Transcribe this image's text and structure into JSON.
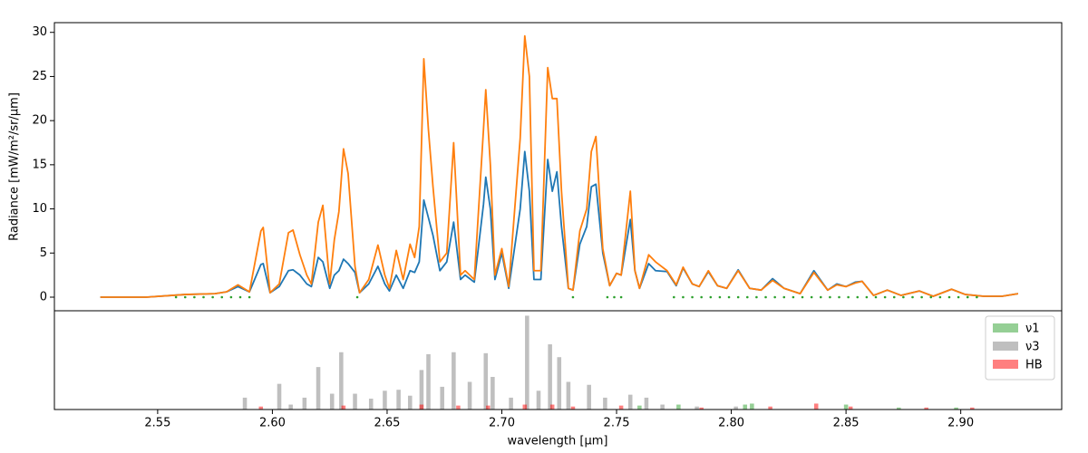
{
  "chart_data": [
    {
      "type": "line",
      "ylabel": "Radiance [mW/m²/sr/μm]",
      "xlim": [
        2.505,
        2.944
      ],
      "ylim": [
        -1.54,
        31.1
      ],
      "yticks": [
        0,
        5,
        10,
        15,
        20,
        25,
        30
      ],
      "x": [
        2.525,
        2.545,
        2.562,
        2.575,
        2.58,
        2.585,
        2.59,
        2.595,
        2.596,
        2.599,
        2.603,
        2.607,
        2.609,
        2.612,
        2.615,
        2.617,
        2.62,
        2.622,
        2.625,
        2.627,
        2.629,
        2.631,
        2.633,
        2.636,
        2.638,
        2.642,
        2.646,
        2.649,
        2.651,
        2.654,
        2.657,
        2.66,
        2.662,
        2.664,
        2.666,
        2.668,
        2.67,
        2.673,
        2.676,
        2.679,
        2.682,
        2.684,
        2.688,
        2.692,
        2.693,
        2.695,
        2.697,
        2.7,
        2.703,
        2.708,
        2.71,
        2.712,
        2.714,
        2.717,
        2.72,
        2.722,
        2.724,
        2.726,
        2.729,
        2.731,
        2.734,
        2.737,
        2.739,
        2.741,
        2.744,
        2.747,
        2.75,
        2.752,
        2.756,
        2.758,
        2.76,
        2.764,
        2.767,
        2.772,
        2.776,
        2.779,
        2.783,
        2.786,
        2.79,
        2.794,
        2.798,
        2.803,
        2.808,
        2.813,
        2.818,
        2.823,
        2.83,
        2.836,
        2.842,
        2.846,
        2.85,
        2.854,
        2.857,
        2.862,
        2.868,
        2.874,
        2.882,
        2.888,
        2.896,
        2.902,
        2.91,
        2.918,
        2.925
      ],
      "series": [
        {
          "color": "#1f77b4",
          "values": [
            0,
            0,
            0.3,
            0.4,
            0.6,
            1.2,
            0.6,
            3.7,
            3.8,
            0.5,
            1.2,
            3.0,
            3.1,
            2.5,
            1.5,
            1.2,
            4.5,
            4.0,
            1.0,
            2.5,
            3.0,
            4.3,
            3.8,
            2.8,
            0.5,
            1.5,
            3.5,
            1.5,
            0.7,
            2.5,
            1.0,
            3.0,
            2.8,
            4.0,
            11.0,
            9.0,
            7.0,
            3.0,
            4.0,
            8.5,
            2.0,
            2.5,
            1.7,
            10.5,
            13.6,
            10.0,
            2.0,
            5.0,
            1.0,
            10.0,
            16.5,
            12.0,
            2.0,
            2.0,
            15.6,
            12.0,
            14.2,
            8.0,
            1.0,
            0.8,
            6.0,
            8.0,
            12.5,
            12.8,
            5.0,
            1.3,
            2.7,
            2.5,
            8.8,
            3.0,
            1.0,
            3.8,
            3.0,
            2.9,
            1.3,
            3.3,
            1.5,
            1.2,
            2.9,
            1.3,
            1.0,
            3.1,
            1.0,
            0.8,
            2.1,
            1.0,
            0.4,
            3.0,
            0.8,
            1.5,
            1.2,
            1.7,
            1.8,
            0.2,
            0.8,
            0.2,
            0.7,
            0.1,
            0.9,
            0.3,
            0.1,
            0.1,
            0.4
          ]
        },
        {
          "color": "#ff7f0e",
          "values": [
            0,
            0,
            0.3,
            0.4,
            0.6,
            1.4,
            0.6,
            7.5,
            7.9,
            0.5,
            1.5,
            7.3,
            7.6,
            4.8,
            2.5,
            1.5,
            8.5,
            10.4,
            1.5,
            6.5,
            9.7,
            16.8,
            14.0,
            3.5,
            0.5,
            2.0,
            5.9,
            2.5,
            1.0,
            5.3,
            2.0,
            6.0,
            4.5,
            8.0,
            27.0,
            19.0,
            12.5,
            4.0,
            5.0,
            17.5,
            2.5,
            3.0,
            2.0,
            19.0,
            23.5,
            15.0,
            2.5,
            5.5,
            1.2,
            18.0,
            29.6,
            25.0,
            3.0,
            3.0,
            26.0,
            22.5,
            22.5,
            12.0,
            1.0,
            0.8,
            7.5,
            10.0,
            16.5,
            18.2,
            5.5,
            1.3,
            2.7,
            2.5,
            12.0,
            3.0,
            1.0,
            4.8,
            4.0,
            3.0,
            1.4,
            3.4,
            1.5,
            1.2,
            3.0,
            1.3,
            1.0,
            3.0,
            1.0,
            0.8,
            1.9,
            1.0,
            0.4,
            2.8,
            0.8,
            1.4,
            1.2,
            1.6,
            1.8,
            0.2,
            0.8,
            0.2,
            0.7,
            0.1,
            0.9,
            0.3,
            0.1,
            0.1,
            0.4
          ]
        }
      ],
      "markers": {
        "color": "#2ca02c",
        "x": [
          2.558,
          2.562,
          2.566,
          2.57,
          2.574,
          2.578,
          2.582,
          2.586,
          2.59,
          2.637,
          2.731,
          2.746,
          2.749,
          2.752,
          2.775,
          2.779,
          2.783,
          2.787,
          2.791,
          2.795,
          2.799,
          2.803,
          2.807,
          2.811,
          2.815,
          2.819,
          2.823,
          2.827,
          2.831,
          2.835,
          2.839,
          2.843,
          2.847,
          2.851,
          2.855,
          2.859,
          2.863,
          2.867,
          2.871,
          2.875,
          2.879,
          2.883,
          2.887,
          2.891,
          2.895,
          2.899,
          2.903,
          2.907
        ],
        "values": [
          0,
          0,
          0,
          0,
          0,
          0,
          0,
          0,
          0,
          0,
          0,
          0,
          0,
          0,
          0,
          0,
          0,
          0,
          0,
          0,
          0,
          0,
          0,
          0,
          0,
          0,
          0,
          0,
          0,
          0,
          0,
          0,
          0,
          0,
          0,
          0,
          0,
          0,
          0,
          0,
          0,
          0,
          0,
          0,
          0,
          0,
          0,
          0
        ]
      }
    },
    {
      "type": "bar",
      "xlabel": "wavelength [μm]",
      "xlim": [
        2.505,
        2.944
      ],
      "ylim": [
        0,
        1
      ],
      "xticks": [
        2.55,
        {
          "value": 2.6,
          "label": "2.60"
        },
        2.65,
        {
          "value": 2.7,
          "label": "2.70"
        },
        2.75,
        {
          "value": 2.8,
          "label": "2.80"
        },
        2.85,
        {
          "value": 2.9,
          "label": "2.90"
        }
      ],
      "legend": "upper right",
      "series": [
        {
          "name": "ν1",
          "color": "#2ca02c",
          "x": [
            2.76,
            2.777,
            2.806,
            2.809,
            2.85,
            2.873,
            2.898
          ],
          "values": [
            0.04,
            0.05,
            0.05,
            0.06,
            0.05,
            0.02,
            0.02
          ]
        },
        {
          "name": "ν3",
          "color": "#808080",
          "x": [
            2.588,
            2.603,
            2.608,
            2.614,
            2.62,
            2.626,
            2.63,
            2.636,
            2.643,
            2.649,
            2.655,
            2.66,
            2.665,
            2.668,
            2.674,
            2.679,
            2.686,
            2.693,
            2.696,
            2.704,
            2.711,
            2.716,
            2.721,
            2.725,
            2.729,
            2.738,
            2.745,
            2.756,
            2.763,
            2.77,
            2.785,
            2.802
          ],
          "values": [
            0.12,
            0.26,
            0.05,
            0.12,
            0.43,
            0.16,
            0.58,
            0.16,
            0.11,
            0.19,
            0.2,
            0.14,
            0.4,
            0.56,
            0.23,
            0.58,
            0.28,
            0.57,
            0.33,
            0.12,
            0.95,
            0.19,
            0.66,
            0.53,
            0.28,
            0.25,
            0.12,
            0.15,
            0.12,
            0.05,
            0.03,
            0.03
          ]
        },
        {
          "name": "HB",
          "color": "#ff0000",
          "x": [
            2.595,
            2.631,
            2.665,
            2.681,
            2.694,
            2.71,
            2.722,
            2.731,
            2.752,
            2.787,
            2.817,
            2.837,
            2.852,
            2.885,
            2.905
          ],
          "values": [
            0.03,
            0.04,
            0.05,
            0.04,
            0.04,
            0.05,
            0.05,
            0.03,
            0.04,
            0.02,
            0.03,
            0.06,
            0.03,
            0.02,
            0.02
          ]
        }
      ]
    }
  ]
}
